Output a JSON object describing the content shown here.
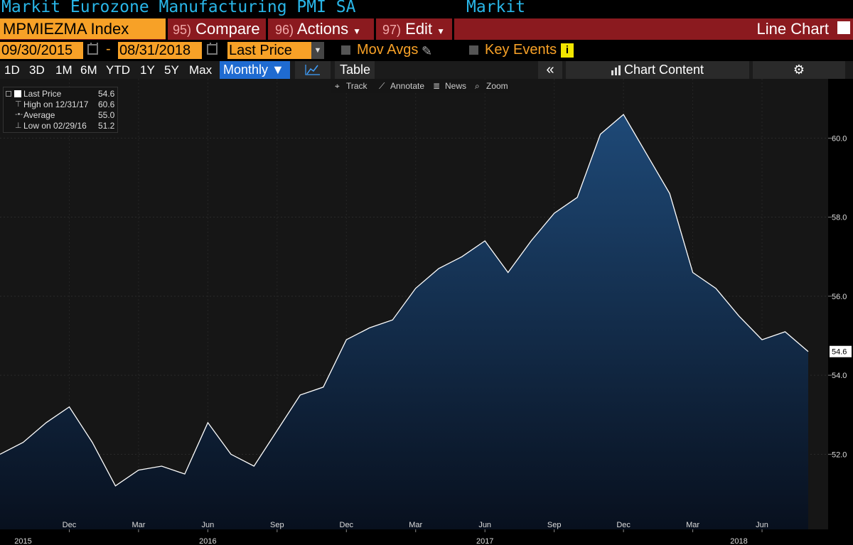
{
  "header": {
    "title": "Markit Eurozone Manufacturing PMI SA",
    "source": "Markit"
  },
  "toolbar": {
    "ticker": "MPMIEZMA Index",
    "compare_num": "95)",
    "compare_label": "Compare",
    "actions_num": "96)",
    "actions_label": "Actions",
    "edit_num": "97)",
    "edit_label": "Edit",
    "chart_type": "Line Chart"
  },
  "range": {
    "start": "09/30/2015",
    "dash": "-",
    "end": "08/31/2018",
    "field": "Last Price",
    "mov_avgs": "Mov Avgs",
    "key_events": "Key Events",
    "info": "i"
  },
  "periods": {
    "items": [
      "1D",
      "3D",
      "1M",
      "6M",
      "YTD",
      "1Y",
      "5Y",
      "Max"
    ],
    "frequency": "Monthly ▼",
    "table": "Table",
    "collapse": "«",
    "chart_content": "Chart Content",
    "settings": "⚙"
  },
  "subtools": {
    "track": "Track",
    "annotate": "Annotate",
    "news": "News",
    "zoom": "Zoom"
  },
  "legend": {
    "last": {
      "label": "Last Price",
      "value": "54.6"
    },
    "high": {
      "label": "High on 12/31/17",
      "value": "60.6"
    },
    "avg": {
      "label": "Average",
      "value": "55.0"
    },
    "low": {
      "label": "Low on 02/29/16",
      "value": "51.2"
    }
  },
  "colors": {
    "accent": "#f7a127",
    "title": "#29b6e8",
    "bar": "#8b1a1f",
    "fill_top": "#1e4977",
    "fill_bottom": "#08101e",
    "line": "#ffffff"
  },
  "chart_data": {
    "type": "area",
    "title": "Markit Eurozone Manufacturing PMI SA",
    "x": [
      "2015-09",
      "2015-10",
      "2015-11",
      "2015-12",
      "2016-01",
      "2016-02",
      "2016-03",
      "2016-04",
      "2016-05",
      "2016-06",
      "2016-07",
      "2016-08",
      "2016-09",
      "2016-10",
      "2016-11",
      "2016-12",
      "2017-01",
      "2017-02",
      "2017-03",
      "2017-04",
      "2017-05",
      "2017-06",
      "2017-07",
      "2017-08",
      "2017-09",
      "2017-10",
      "2017-11",
      "2017-12",
      "2018-01",
      "2018-02",
      "2018-03",
      "2018-04",
      "2018-05",
      "2018-06",
      "2018-07",
      "2018-08"
    ],
    "series": [
      {
        "values": [
          52.0,
          52.3,
          52.8,
          53.2,
          52.3,
          51.2,
          51.6,
          51.7,
          51.5,
          52.8,
          52.0,
          51.7,
          52.6,
          53.5,
          53.7,
          54.9,
          55.2,
          55.4,
          56.2,
          56.7,
          57.0,
          57.4,
          56.6,
          57.4,
          58.1,
          58.5,
          60.1,
          60.6,
          59.6,
          58.6,
          56.6,
          56.2,
          55.5,
          54.9,
          55.1,
          54.6
        ]
      }
    ],
    "ylim": [
      50.1,
      61.5
    ],
    "yticks": [
      "52.0",
      "54.0",
      "56.0",
      "58.0",
      "60.0"
    ],
    "ytick_values": [
      52,
      54,
      56,
      58,
      60
    ],
    "last_label": "54.6",
    "month_labels": [
      "Dec",
      "Mar",
      "Jun",
      "Sep",
      "Dec",
      "Mar",
      "Jun",
      "Sep",
      "Dec",
      "Mar",
      "Jun"
    ],
    "month_label_dates": [
      "2015-12",
      "2016-03",
      "2016-06",
      "2016-09",
      "2016-12",
      "2017-03",
      "2017-06",
      "2017-09",
      "2017-12",
      "2018-03",
      "2018-06"
    ],
    "year_labels": [
      "2015",
      "2016",
      "2017",
      "2018"
    ],
    "year_label_dates": [
      "2015-10",
      "2016-06",
      "2017-06",
      "2018-05"
    ],
    "grid": true
  }
}
